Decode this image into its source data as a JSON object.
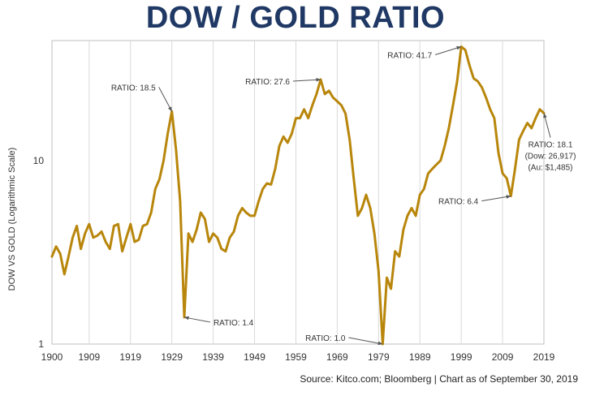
{
  "chart_data": {
    "type": "line",
    "title": "DOW / GOLD RATIO",
    "ylabel": "DOW VS GOLD (Logarithmic Scale)",
    "xlabel": "",
    "y_scale": "log",
    "xlim": [
      1900,
      2019
    ],
    "ylim": [
      1,
      45
    ],
    "x_ticks": [
      "1900",
      "1909",
      "1919",
      "1929",
      "1939",
      "1949",
      "1959",
      "1969",
      "1979",
      "1989",
      "1999",
      "2009",
      "2019"
    ],
    "y_ticks": [
      "1",
      "10"
    ],
    "grid": "vertical gridlines",
    "legend": "none",
    "line_color": "#b8860b",
    "series": [
      {
        "points": [
          [
            1900,
            3.0
          ],
          [
            1901,
            3.4
          ],
          [
            1902,
            3.1
          ],
          [
            1903,
            2.4
          ],
          [
            1904,
            3.0
          ],
          [
            1905,
            3.8
          ],
          [
            1906,
            4.4
          ],
          [
            1907,
            3.3
          ],
          [
            1908,
            4.0
          ],
          [
            1909,
            4.5
          ],
          [
            1910,
            3.8
          ],
          [
            1911,
            3.9
          ],
          [
            1912,
            4.1
          ],
          [
            1913,
            3.6
          ],
          [
            1914,
            3.3
          ],
          [
            1915,
            4.4
          ],
          [
            1916,
            4.5
          ],
          [
            1917,
            3.2
          ],
          [
            1918,
            3.8
          ],
          [
            1919,
            4.5
          ],
          [
            1920,
            3.6
          ],
          [
            1921,
            3.7
          ],
          [
            1922,
            4.4
          ],
          [
            1923,
            4.5
          ],
          [
            1924,
            5.2
          ],
          [
            1925,
            7.0
          ],
          [
            1926,
            7.9
          ],
          [
            1927,
            10.0
          ],
          [
            1928,
            14.0
          ],
          [
            1929,
            18.5
          ],
          [
            1930,
            11.5
          ],
          [
            1931,
            6.0
          ],
          [
            1932,
            1.4
          ],
          [
            1933,
            4.0
          ],
          [
            1934,
            3.6
          ],
          [
            1935,
            4.2
          ],
          [
            1936,
            5.2
          ],
          [
            1937,
            4.8
          ],
          [
            1938,
            3.6
          ],
          [
            1939,
            4.0
          ],
          [
            1940,
            3.8
          ],
          [
            1941,
            3.3
          ],
          [
            1942,
            3.2
          ],
          [
            1943,
            3.8
          ],
          [
            1944,
            4.1
          ],
          [
            1945,
            5.0
          ],
          [
            1946,
            5.5
          ],
          [
            1947,
            5.2
          ],
          [
            1948,
            5.0
          ],
          [
            1949,
            5.0
          ],
          [
            1950,
            6.0
          ],
          [
            1951,
            7.0
          ],
          [
            1952,
            7.5
          ],
          [
            1953,
            7.4
          ],
          [
            1954,
            9.0
          ],
          [
            1955,
            12.0
          ],
          [
            1956,
            13.5
          ],
          [
            1957,
            12.5
          ],
          [
            1958,
            14.0
          ],
          [
            1959,
            17.0
          ],
          [
            1960,
            17.0
          ],
          [
            1961,
            19.0
          ],
          [
            1962,
            17.0
          ],
          [
            1963,
            20.0
          ],
          [
            1964,
            23.0
          ],
          [
            1965,
            27.6
          ],
          [
            1966,
            23.0
          ],
          [
            1967,
            24.0
          ],
          [
            1968,
            22.0
          ],
          [
            1969,
            21.0
          ],
          [
            1970,
            20.0
          ],
          [
            1971,
            18.0
          ],
          [
            1972,
            13.0
          ],
          [
            1973,
            8.0
          ],
          [
            1974,
            5.0
          ],
          [
            1975,
            5.5
          ],
          [
            1976,
            6.5
          ],
          [
            1977,
            5.5
          ],
          [
            1978,
            4.0
          ],
          [
            1979,
            2.5
          ],
          [
            1980,
            1.0
          ],
          [
            1981,
            2.3
          ],
          [
            1982,
            2.0
          ],
          [
            1983,
            3.2
          ],
          [
            1984,
            3.0
          ],
          [
            1985,
            4.2
          ],
          [
            1986,
            5.0
          ],
          [
            1987,
            5.5
          ],
          [
            1988,
            5.0
          ],
          [
            1989,
            6.5
          ],
          [
            1990,
            7.0
          ],
          [
            1991,
            8.5
          ],
          [
            1992,
            9.0
          ],
          [
            1993,
            9.5
          ],
          [
            1994,
            10.0
          ],
          [
            1995,
            12.0
          ],
          [
            1996,
            15.0
          ],
          [
            1997,
            20.0
          ],
          [
            1998,
            27.0
          ],
          [
            1999,
            41.7
          ],
          [
            2000,
            40.0
          ],
          [
            2001,
            33.0
          ],
          [
            2002,
            28.0
          ],
          [
            2003,
            27.0
          ],
          [
            2004,
            25.0
          ],
          [
            2005,
            22.0
          ],
          [
            2006,
            19.0
          ],
          [
            2007,
            17.0
          ],
          [
            2008,
            11.0
          ],
          [
            2009,
            8.5
          ],
          [
            2010,
            8.0
          ],
          [
            2011,
            6.4
          ],
          [
            2012,
            9.0
          ],
          [
            2013,
            13.0
          ],
          [
            2014,
            14.5
          ],
          [
            2015,
            16.0
          ],
          [
            2016,
            15.0
          ],
          [
            2017,
            17.0
          ],
          [
            2018,
            19.0
          ],
          [
            2019,
            18.1
          ]
        ]
      }
    ],
    "annotations": [
      {
        "text": "RATIO: 18.5",
        "x": 1929,
        "y": 18.5
      },
      {
        "text": "RATIO: 1.4",
        "x": 1932,
        "y": 1.4
      },
      {
        "text": "RATIO: 27.6",
        "x": 1965,
        "y": 27.6
      },
      {
        "text": "RATIO: 1.0",
        "x": 1980,
        "y": 1.0
      },
      {
        "text": "RATIO: 41.7",
        "x": 1999,
        "y": 41.7
      },
      {
        "text": "RATIO: 6.4",
        "x": 2011,
        "y": 6.4
      },
      {
        "text": "RATIO: 18.1",
        "sub": [
          "(Dow: 26,917)",
          "(Au: $1,485)"
        ],
        "x": 2019,
        "y": 18.1
      }
    ],
    "source": "Source: Kitco.com; Bloomberg   |  Chart as of September 30, 2019"
  }
}
